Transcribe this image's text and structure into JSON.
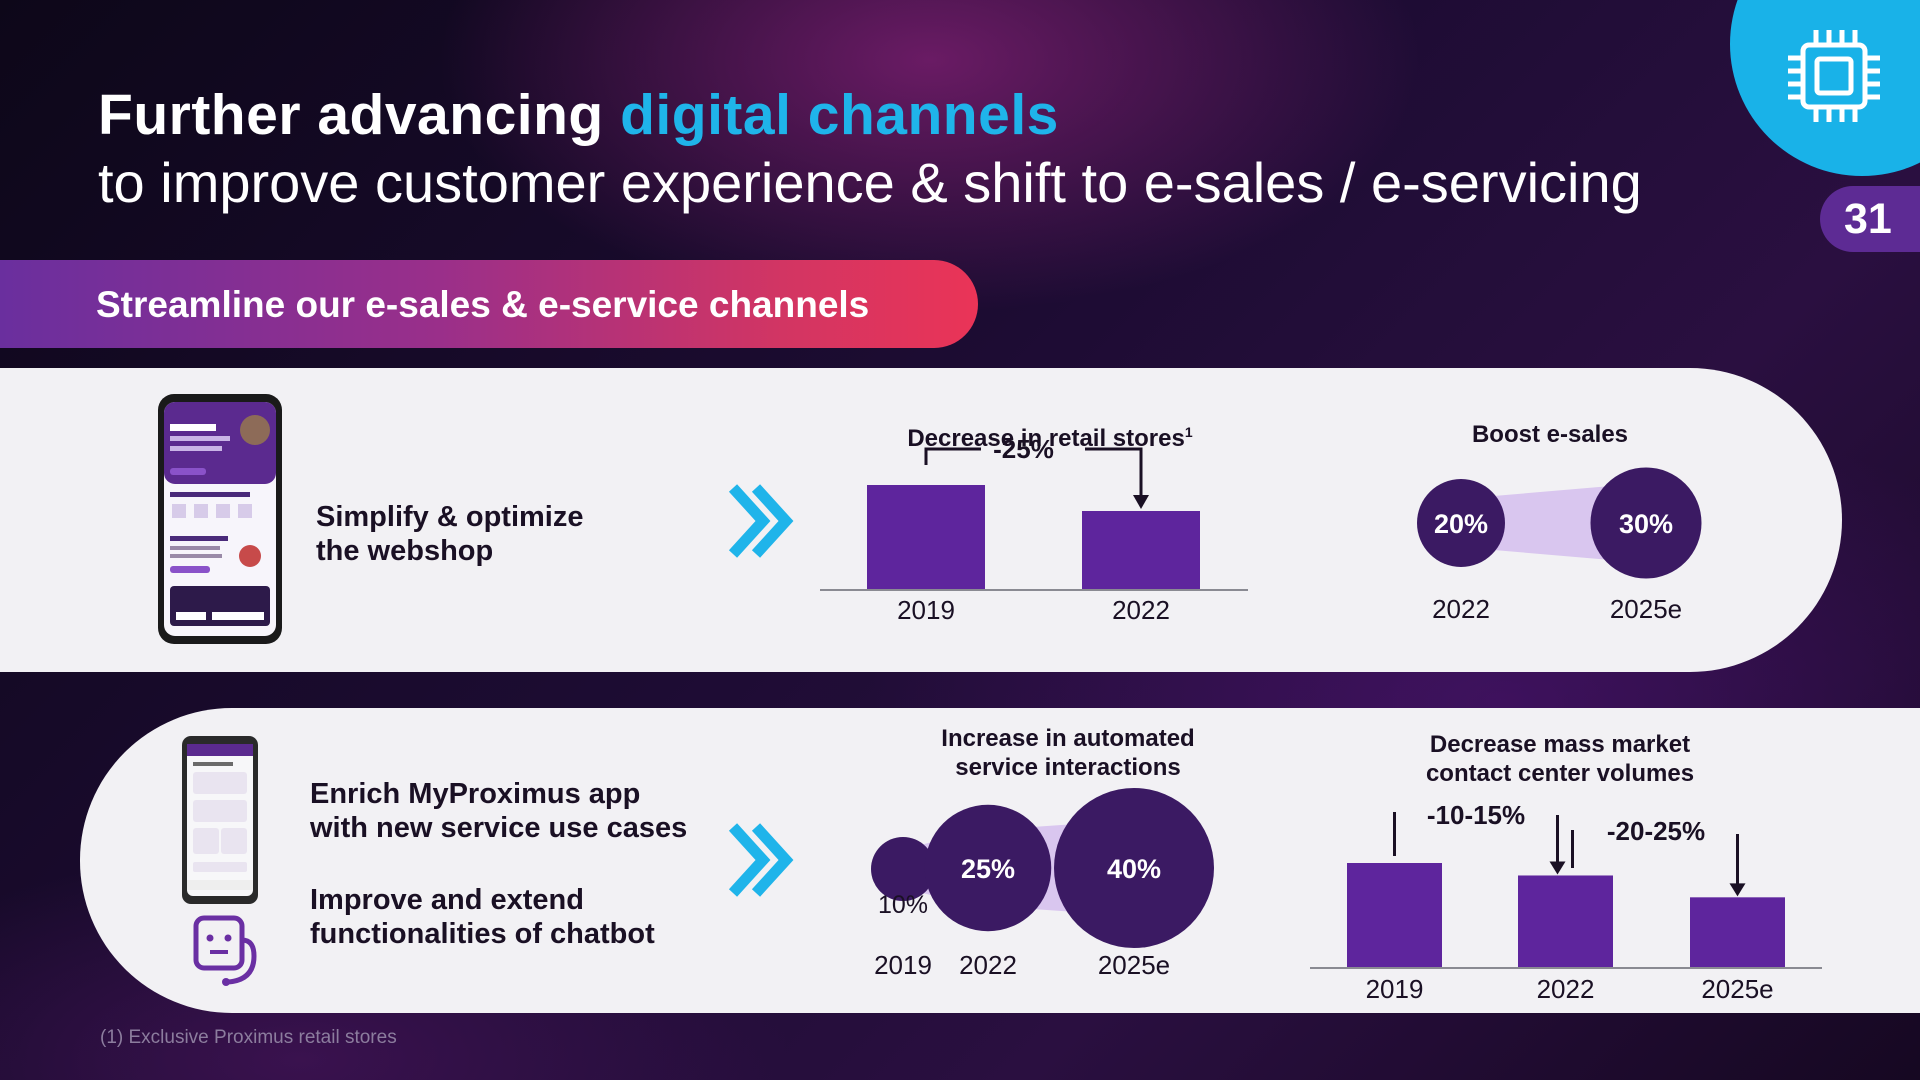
{
  "header": {
    "title_bold": "Further advancing ",
    "title_accent": "digital channels",
    "subtitle": "to improve customer experience & shift to e-sales / e-servicing",
    "page_number": "31"
  },
  "banner": {
    "text": "Streamline our e-sales & e-service channels"
  },
  "row1": {
    "label_line1": "Simplify & optimize",
    "label_line2": "the webshop"
  },
  "row2": {
    "label1_line1": "Enrich MyProximus app",
    "label1_line2": "with new service use cases",
    "label2_line1": "Improve and extend",
    "label2_line2": "functionalities of chatbot"
  },
  "footnote": "(1) Exclusive Proximus retail stores",
  "colors": {
    "bar": "#5e259d",
    "accent_blue": "#1fb4ea",
    "bubble_dark": "#3b1a63",
    "bubble_light": "#d9c6ef",
    "panel": "#f2f1f4"
  },
  "chart_data": [
    {
      "type": "bar",
      "title": "Decrease in retail stores",
      "title_superscript": "1",
      "categories": [
        "2019",
        "2022"
      ],
      "values": [
        100,
        75
      ],
      "annotation": "-25%",
      "ylim": [
        0,
        100
      ]
    },
    {
      "type": "bubble",
      "title": "Boost e-sales",
      "categories": [
        "2022",
        "2025e"
      ],
      "values": [
        20,
        30
      ],
      "labels": [
        "20%",
        "30%"
      ]
    },
    {
      "type": "bubble",
      "title_line1": "Increase in automated",
      "title_line2": "service interactions",
      "categories": [
        "2019",
        "2022",
        "2025e"
      ],
      "values": [
        10,
        25,
        40
      ],
      "labels": [
        "10%",
        "25%",
        "40%"
      ]
    },
    {
      "type": "bar",
      "title_line1": "Decrease mass market",
      "title_line2": "contact center volumes",
      "categories": [
        "2019",
        "2022",
        "2025e"
      ],
      "values": [
        100,
        88,
        67
      ],
      "annotations": [
        "-10-15%",
        "-20-25%"
      ],
      "ylim": [
        0,
        100
      ]
    }
  ]
}
